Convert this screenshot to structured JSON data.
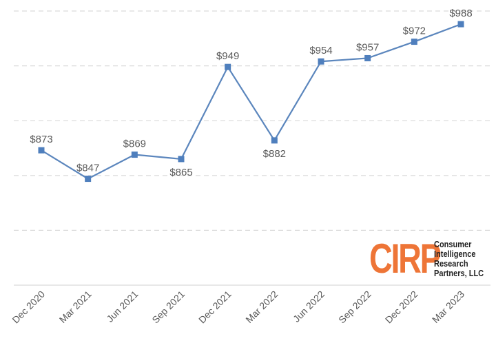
{
  "chart_data": {
    "type": "line",
    "categories": [
      "Dec 2020",
      "Mar 2021",
      "Jun 2021",
      "Sep 2021",
      "Dec 2021",
      "Mar 2022",
      "Jun 2022",
      "Sep 2022",
      "Dec 2022",
      "Mar 2023"
    ],
    "values": [
      873,
      847,
      869,
      865,
      949,
      882,
      954,
      957,
      972,
      988
    ],
    "data_labels": [
      "$873",
      "$847",
      "$869",
      "$865",
      "$949",
      "$882",
      "$954",
      "$957",
      "$972",
      "$988"
    ],
    "label_position": [
      "above",
      "above",
      "above",
      "below",
      "above",
      "below",
      "above",
      "above",
      "above",
      "above"
    ],
    "ylim": [
      750,
      1000
    ],
    "y_gridlines": [
      800,
      850,
      900,
      950,
      1000
    ],
    "grid": true,
    "y_tick_labels_visible": false,
    "series_color": "#4f7fbd"
  },
  "logo": {
    "mark": "CIRP",
    "lines": [
      "Consumer",
      "Intelligence",
      "Research",
      "Partners, LLC"
    ],
    "color": "#ee7537"
  }
}
